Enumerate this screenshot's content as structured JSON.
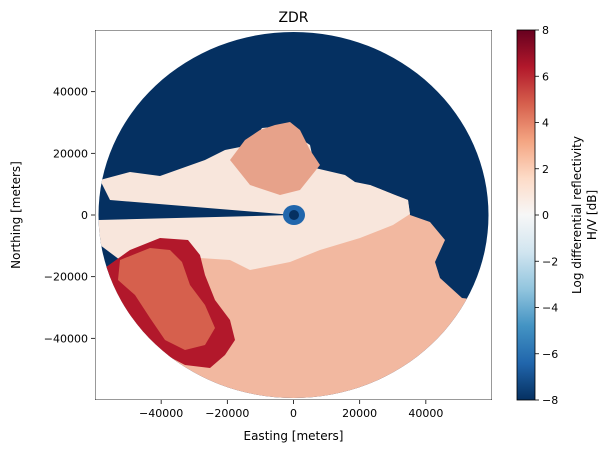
{
  "chart_data": {
    "type": "heatmap",
    "title": "ZDR",
    "xlabel": "Easting [meters]",
    "ylabel": "Northing [meters]",
    "xlim": [
      -60000,
      60000
    ],
    "ylim": [
      -60000,
      60000
    ],
    "x_ticks": [
      -40000,
      -20000,
      0,
      20000,
      40000
    ],
    "x_tick_labels": [
      "−40000",
      "−20000",
      "0",
      "20000",
      "40000"
    ],
    "y_ticks": [
      -40000,
      -20000,
      0,
      20000,
      40000
    ],
    "y_tick_labels": [
      "−40000",
      "−20000",
      "0",
      "20000",
      "40000"
    ],
    "colorbar": {
      "label_line1": "Log differential reflectivity",
      "label_line2": "H/V [dB]",
      "range": [
        -8,
        8
      ],
      "ticks": [
        8,
        6,
        4,
        2,
        0,
        -2,
        -4,
        -6,
        -8
      ],
      "tick_labels": [
        "8",
        "6",
        "4",
        "2",
        "0",
        "−2",
        "−4",
        "−6",
        "−8"
      ],
      "colormap": "RdBu_r",
      "stops": [
        "#053061",
        "#2166ac",
        "#4393c3",
        "#92c5de",
        "#d1e5f0",
        "#f7f7f7",
        "#fddbc7",
        "#f4a582",
        "#d6604d",
        "#b2182b",
        "#67001f"
      ]
    },
    "radar_range_m": 59000,
    "grid": false,
    "description_regions": [
      {
        "region": "background-no-echo",
        "value": -8
      },
      {
        "region": "south-sector",
        "value": 1.5
      },
      {
        "region": "central-precip",
        "value": 0.8
      },
      {
        "region": "west-band",
        "value": 5.5
      },
      {
        "region": "radar-center",
        "value": -6
      }
    ]
  }
}
